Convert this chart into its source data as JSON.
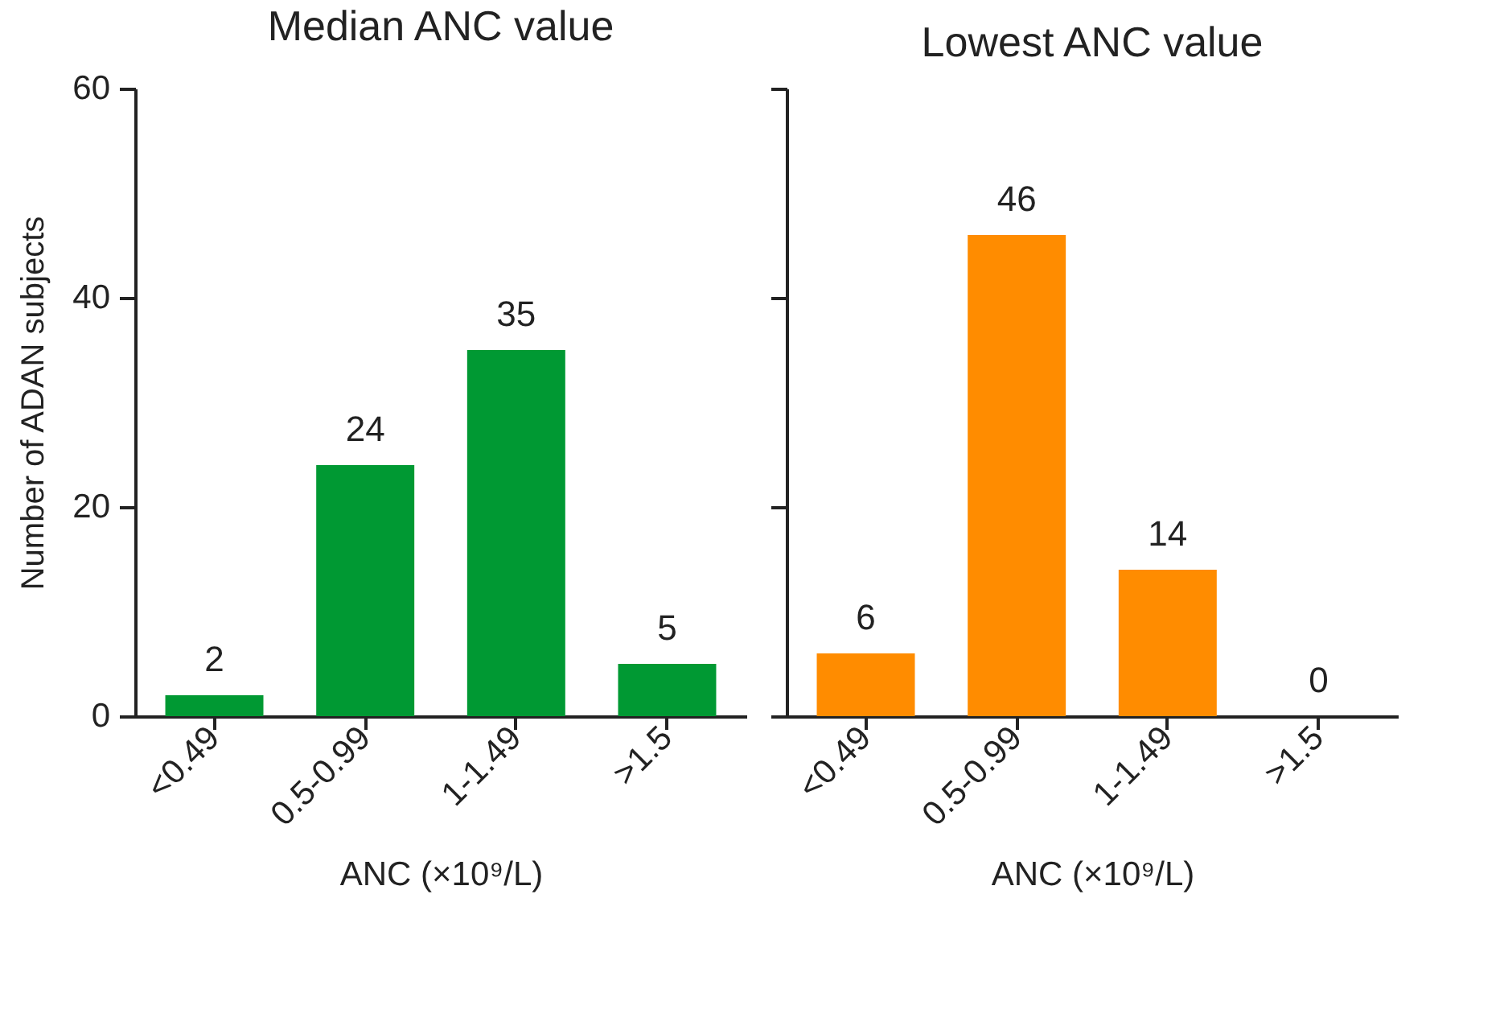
{
  "chart_data": [
    {
      "type": "bar",
      "title": "Median ANC value",
      "xlabel": "ANC (×10⁹/L)",
      "ylabel": "Number of ADAN subjects",
      "categories": [
        "<0.49",
        "0.5-0.99",
        "1-1.49",
        ">1.5"
      ],
      "values": [
        2,
        24,
        35,
        5
      ],
      "color": "#009933",
      "ylim": [
        0,
        60
      ],
      "yticks": [
        0,
        20,
        40,
        60
      ],
      "data_labels": true
    },
    {
      "type": "bar",
      "title": "Lowest ANC value",
      "xlabel": "ANC (×10⁹/L)",
      "categories": [
        "<0.49",
        "0.5-0.99",
        "1-1.49",
        ">1.5"
      ],
      "values": [
        6,
        46,
        14,
        0
      ],
      "color": "#ff8c00",
      "ylim": [
        0,
        60
      ],
      "yticks": [
        0,
        20,
        40,
        60
      ],
      "data_labels": true,
      "tick_labels": "x"
    }
  ]
}
